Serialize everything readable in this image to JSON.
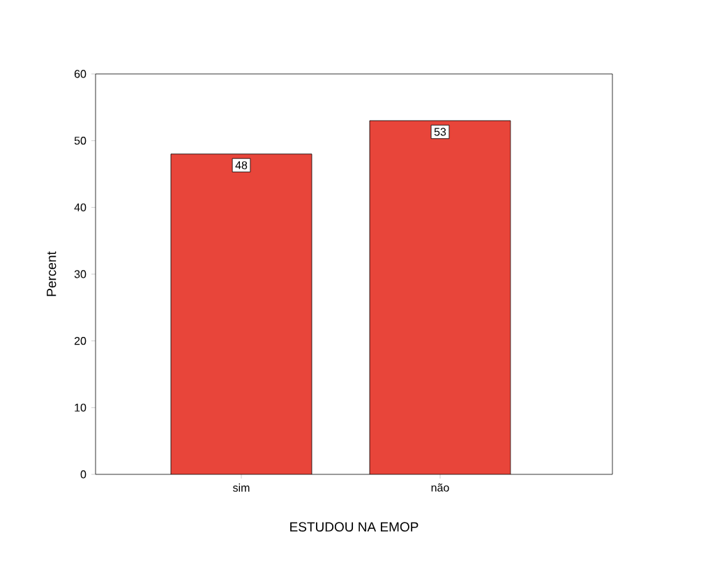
{
  "chart_data": {
    "type": "bar",
    "categories": [
      "sim",
      "não"
    ],
    "values": [
      48,
      53
    ],
    "color": "#e8453a",
    "xlabel": "ESTUDOU NA EMOP",
    "ylabel": "Percent",
    "ylim": [
      0,
      60
    ],
    "yticks": [
      0,
      10,
      20,
      30,
      40,
      50,
      60
    ],
    "data_labels": true
  }
}
